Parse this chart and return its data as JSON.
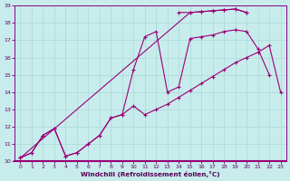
{
  "xlabel": "Windchill (Refroidissement éolien,°C)",
  "xlim": [
    -0.5,
    23.5
  ],
  "ylim": [
    10,
    19
  ],
  "bg_color": "#c8ecec",
  "grid_color": "#a8d8d8",
  "line_color": "#990077",
  "lines": [
    {
      "x": [
        0,
        1,
        2,
        3,
        4,
        5,
        6,
        7,
        8,
        9,
        10,
        11,
        12,
        13,
        14,
        15,
        16,
        17,
        18,
        19,
        20,
        21,
        22,
        23
      ],
      "y": [
        10.2,
        10.5,
        11.5,
        11.9,
        10.3,
        10.5,
        11.0,
        11.5,
        12.5,
        12.7,
        13.2,
        12.7,
        13.0,
        13.3,
        13.7,
        14.1,
        14.5,
        14.9,
        15.3,
        15.7,
        16.0,
        16.3,
        16.7,
        14.0
      ]
    },
    {
      "x": [
        0,
        1,
        2,
        3,
        4,
        5,
        6,
        7,
        8,
        9,
        10,
        11,
        12,
        13,
        14,
        15,
        16,
        17,
        18,
        19,
        20,
        21,
        22
      ],
      "y": [
        10.2,
        10.5,
        11.5,
        11.9,
        10.3,
        10.5,
        11.0,
        11.5,
        12.5,
        12.7,
        15.3,
        17.2,
        17.5,
        14.0,
        14.3,
        17.1,
        17.2,
        17.3,
        17.5,
        17.6,
        17.5,
        16.5,
        15.0
      ]
    },
    {
      "x": [
        14,
        15,
        16,
        17,
        18,
        19,
        20
      ],
      "y": [
        18.6,
        18.6,
        18.65,
        18.7,
        18.75,
        18.8,
        18.6
      ]
    },
    {
      "x": [
        0,
        15,
        16,
        17,
        18,
        19,
        20
      ],
      "y": [
        10.2,
        18.6,
        18.65,
        18.7,
        18.75,
        18.8,
        18.6
      ]
    }
  ]
}
